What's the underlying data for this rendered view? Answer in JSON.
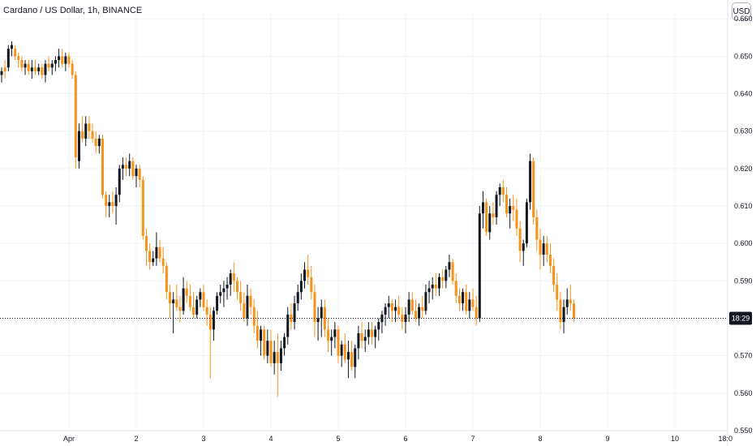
{
  "header": {
    "title": "Cardano / US Dollar, 1h, BINANCE",
    "currency_button": "USD"
  },
  "colors": {
    "up": "#131722",
    "down": "#f7931a",
    "grid": "#f0f3fa",
    "axis_text": "#131722",
    "price_line": "#131722"
  },
  "chart_data": {
    "type": "candlestick",
    "title": "Cardano / US Dollar, 1h, BINANCE",
    "y_axis": {
      "ticks": [
        0.55,
        0.56,
        0.57,
        0.58,
        0.59,
        0.6,
        0.61,
        0.62,
        0.63,
        0.64,
        0.65,
        0.66
      ],
      "ylim": [
        0.55,
        0.662
      ],
      "position": "right"
    },
    "x_axis": {
      "tick_labels": [
        "Apr",
        "2",
        "3",
        "4",
        "5",
        "6",
        "7",
        "8",
        "9",
        "10",
        "18:0"
      ],
      "tick_index": [
        20,
        40,
        60,
        80,
        100,
        120,
        140,
        160,
        180,
        200,
        215
      ]
    },
    "current_price": 0.58,
    "current_price_label": "18:29",
    "candles": [
      [
        0.645,
        0.647,
        0.643,
        0.646
      ],
      [
        0.647,
        0.649,
        0.644,
        0.646
      ],
      [
        0.647,
        0.653,
        0.646,
        0.652
      ],
      [
        0.652,
        0.654,
        0.65,
        0.653
      ],
      [
        0.652,
        0.653,
        0.649,
        0.65
      ],
      [
        0.65,
        0.651,
        0.647,
        0.649
      ],
      [
        0.649,
        0.65,
        0.646,
        0.647
      ],
      [
        0.647,
        0.649,
        0.645,
        0.648
      ],
      [
        0.648,
        0.649,
        0.645,
        0.646
      ],
      [
        0.646,
        0.649,
        0.644,
        0.647
      ],
      [
        0.647,
        0.649,
        0.645,
        0.646
      ],
      [
        0.646,
        0.648,
        0.645,
        0.647
      ],
      [
        0.647,
        0.648,
        0.644,
        0.645
      ],
      [
        0.645,
        0.649,
        0.643,
        0.648
      ],
      [
        0.648,
        0.65,
        0.646,
        0.647
      ],
      [
        0.647,
        0.649,
        0.645,
        0.648
      ],
      [
        0.648,
        0.65,
        0.646,
        0.649
      ],
      [
        0.649,
        0.652,
        0.647,
        0.65
      ],
      [
        0.65,
        0.652,
        0.647,
        0.648
      ],
      [
        0.648,
        0.651,
        0.646,
        0.65
      ],
      [
        0.65,
        0.651,
        0.647,
        0.648
      ],
      [
        0.648,
        0.649,
        0.644,
        0.645
      ],
      [
        0.645,
        0.646,
        0.62,
        0.623
      ],
      [
        0.622,
        0.632,
        0.62,
        0.63
      ],
      [
        0.63,
        0.634,
        0.627,
        0.628
      ],
      [
        0.628,
        0.634,
        0.626,
        0.632
      ],
      [
        0.632,
        0.634,
        0.628,
        0.63
      ],
      [
        0.63,
        0.632,
        0.627,
        0.628
      ],
      [
        0.628,
        0.63,
        0.624,
        0.626
      ],
      [
        0.626,
        0.629,
        0.624,
        0.628
      ],
      [
        0.628,
        0.629,
        0.612,
        0.613
      ],
      [
        0.613,
        0.614,
        0.607,
        0.61
      ],
      [
        0.61,
        0.613,
        0.607,
        0.611
      ],
      [
        0.611,
        0.614,
        0.608,
        0.61
      ],
      [
        0.61,
        0.615,
        0.605,
        0.613
      ],
      [
        0.613,
        0.621,
        0.611,
        0.62
      ],
      [
        0.62,
        0.623,
        0.617,
        0.621
      ],
      [
        0.621,
        0.623,
        0.618,
        0.62
      ],
      [
        0.62,
        0.624,
        0.618,
        0.622
      ],
      [
        0.622,
        0.623,
        0.617,
        0.618
      ],
      [
        0.618,
        0.621,
        0.615,
        0.62
      ],
      [
        0.62,
        0.621,
        0.615,
        0.617
      ],
      [
        0.617,
        0.618,
        0.601,
        0.602
      ],
      [
        0.602,
        0.604,
        0.594,
        0.598
      ],
      [
        0.598,
        0.6,
        0.593,
        0.595
      ],
      [
        0.595,
        0.598,
        0.594,
        0.596
      ],
      [
        0.596,
        0.603,
        0.594,
        0.599
      ],
      [
        0.599,
        0.601,
        0.595,
        0.596
      ],
      [
        0.596,
        0.599,
        0.592,
        0.594
      ],
      [
        0.594,
        0.595,
        0.585,
        0.587
      ],
      [
        0.587,
        0.589,
        0.58,
        0.584
      ],
      [
        0.584,
        0.587,
        0.576,
        0.585
      ],
      [
        0.585,
        0.589,
        0.582,
        0.583
      ],
      [
        0.583,
        0.586,
        0.579,
        0.582
      ],
      [
        0.582,
        0.591,
        0.581,
        0.588
      ],
      [
        0.588,
        0.59,
        0.584,
        0.586
      ],
      [
        0.586,
        0.589,
        0.582,
        0.583
      ],
      [
        0.583,
        0.587,
        0.58,
        0.581
      ],
      [
        0.581,
        0.586,
        0.58,
        0.585
      ],
      [
        0.585,
        0.588,
        0.583,
        0.587
      ],
      [
        0.587,
        0.589,
        0.582,
        0.583
      ],
      [
        0.583,
        0.585,
        0.578,
        0.581
      ],
      [
        0.581,
        0.583,
        0.564,
        0.577
      ],
      [
        0.577,
        0.583,
        0.574,
        0.582
      ],
      [
        0.582,
        0.587,
        0.581,
        0.586
      ],
      [
        0.586,
        0.589,
        0.584,
        0.587
      ],
      [
        0.587,
        0.59,
        0.583,
        0.588
      ],
      [
        0.588,
        0.591,
        0.585,
        0.589
      ],
      [
        0.589,
        0.593,
        0.586,
        0.592
      ],
      [
        0.592,
        0.595,
        0.587,
        0.59
      ],
      [
        0.59,
        0.591,
        0.585,
        0.587
      ],
      [
        0.587,
        0.59,
        0.582,
        0.584
      ],
      [
        0.584,
        0.587,
        0.579,
        0.58
      ],
      [
        0.58,
        0.589,
        0.578,
        0.586
      ],
      [
        0.586,
        0.588,
        0.581,
        0.583
      ],
      [
        0.583,
        0.585,
        0.576,
        0.578
      ],
      [
        0.578,
        0.582,
        0.572,
        0.574
      ],
      [
        0.574,
        0.578,
        0.57,
        0.577
      ],
      [
        0.577,
        0.578,
        0.569,
        0.57
      ],
      [
        0.57,
        0.577,
        0.568,
        0.574
      ],
      [
        0.574,
        0.577,
        0.567,
        0.568
      ],
      [
        0.568,
        0.574,
        0.565,
        0.571
      ],
      [
        0.571,
        0.576,
        0.559,
        0.568
      ],
      [
        0.568,
        0.574,
        0.566,
        0.572
      ],
      [
        0.572,
        0.576,
        0.57,
        0.575
      ],
      [
        0.575,
        0.583,
        0.573,
        0.581
      ],
      [
        0.581,
        0.584,
        0.577,
        0.579
      ],
      [
        0.579,
        0.586,
        0.577,
        0.584
      ],
      [
        0.584,
        0.589,
        0.582,
        0.587
      ],
      [
        0.587,
        0.592,
        0.585,
        0.59
      ],
      [
        0.59,
        0.595,
        0.588,
        0.593
      ],
      [
        0.593,
        0.597,
        0.589,
        0.591
      ],
      [
        0.591,
        0.594,
        0.585,
        0.587
      ],
      [
        0.587,
        0.589,
        0.575,
        0.579
      ],
      [
        0.579,
        0.583,
        0.574,
        0.58
      ],
      [
        0.58,
        0.585,
        0.575,
        0.583
      ],
      [
        0.583,
        0.585,
        0.575,
        0.577
      ],
      [
        0.577,
        0.58,
        0.571,
        0.574
      ],
      [
        0.574,
        0.577,
        0.57,
        0.575
      ],
      [
        0.575,
        0.579,
        0.572,
        0.577
      ],
      [
        0.577,
        0.578,
        0.568,
        0.57
      ],
      [
        0.57,
        0.574,
        0.567,
        0.573
      ],
      [
        0.573,
        0.576,
        0.568,
        0.569
      ],
      [
        0.569,
        0.574,
        0.564,
        0.571
      ],
      [
        0.571,
        0.574,
        0.566,
        0.567
      ],
      [
        0.567,
        0.573,
        0.564,
        0.572
      ],
      [
        0.572,
        0.578,
        0.569,
        0.576
      ],
      [
        0.576,
        0.579,
        0.572,
        0.574
      ],
      [
        0.574,
        0.577,
        0.571,
        0.575
      ],
      [
        0.575,
        0.579,
        0.573,
        0.577
      ],
      [
        0.577,
        0.579,
        0.573,
        0.575
      ],
      [
        0.575,
        0.578,
        0.572,
        0.577
      ],
      [
        0.577,
        0.58,
        0.574,
        0.579
      ],
      [
        0.579,
        0.582,
        0.576,
        0.581
      ],
      [
        0.581,
        0.584,
        0.578,
        0.583
      ],
      [
        0.583,
        0.586,
        0.58,
        0.584
      ],
      [
        0.584,
        0.585,
        0.579,
        0.582
      ],
      [
        0.582,
        0.585,
        0.579,
        0.583
      ],
      [
        0.583,
        0.586,
        0.58,
        0.581
      ],
      [
        0.581,
        0.583,
        0.577,
        0.579
      ],
      [
        0.579,
        0.583,
        0.576,
        0.581
      ],
      [
        0.581,
        0.587,
        0.579,
        0.585
      ],
      [
        0.585,
        0.587,
        0.581,
        0.582
      ],
      [
        0.582,
        0.585,
        0.579,
        0.58
      ],
      [
        0.58,
        0.584,
        0.578,
        0.583
      ],
      [
        0.583,
        0.586,
        0.58,
        0.582
      ],
      [
        0.582,
        0.589,
        0.581,
        0.587
      ],
      [
        0.587,
        0.59,
        0.584,
        0.588
      ],
      [
        0.588,
        0.591,
        0.585,
        0.589
      ],
      [
        0.589,
        0.592,
        0.586,
        0.588
      ],
      [
        0.588,
        0.592,
        0.586,
        0.591
      ],
      [
        0.591,
        0.593,
        0.588,
        0.59
      ],
      [
        0.59,
        0.594,
        0.588,
        0.593
      ],
      [
        0.593,
        0.597,
        0.591,
        0.595
      ],
      [
        0.595,
        0.596,
        0.589,
        0.59
      ],
      [
        0.59,
        0.592,
        0.584,
        0.586
      ],
      [
        0.586,
        0.588,
        0.582,
        0.584
      ],
      [
        0.584,
        0.588,
        0.582,
        0.587
      ],
      [
        0.587,
        0.589,
        0.581,
        0.582
      ],
      [
        0.582,
        0.587,
        0.58,
        0.585
      ],
      [
        0.585,
        0.588,
        0.582,
        0.583
      ],
      [
        0.583,
        0.586,
        0.578,
        0.58
      ],
      [
        0.58,
        0.61,
        0.579,
        0.608
      ],
      [
        0.608,
        0.614,
        0.604,
        0.611
      ],
      [
        0.611,
        0.612,
        0.602,
        0.603
      ],
      [
        0.603,
        0.61,
        0.601,
        0.608
      ],
      [
        0.608,
        0.611,
        0.605,
        0.607
      ],
      [
        0.607,
        0.614,
        0.605,
        0.613
      ],
      [
        0.613,
        0.616,
        0.61,
        0.615
      ],
      [
        0.615,
        0.617,
        0.611,
        0.613
      ],
      [
        0.613,
        0.615,
        0.607,
        0.608
      ],
      [
        0.608,
        0.612,
        0.604,
        0.61
      ],
      [
        0.61,
        0.613,
        0.606,
        0.609
      ],
      [
        0.609,
        0.612,
        0.602,
        0.604
      ],
      [
        0.604,
        0.606,
        0.595,
        0.598
      ],
      [
        0.598,
        0.601,
        0.594,
        0.6
      ],
      [
        0.6,
        0.612,
        0.599,
        0.611
      ],
      [
        0.611,
        0.624,
        0.609,
        0.622
      ],
      [
        0.622,
        0.623,
        0.605,
        0.607
      ],
      [
        0.607,
        0.609,
        0.598,
        0.601
      ],
      [
        0.601,
        0.604,
        0.593,
        0.597
      ],
      [
        0.597,
        0.602,
        0.594,
        0.6
      ],
      [
        0.6,
        0.602,
        0.595,
        0.597
      ],
      [
        0.597,
        0.6,
        0.592,
        0.594
      ],
      [
        0.594,
        0.596,
        0.587,
        0.589
      ],
      [
        0.589,
        0.592,
        0.582,
        0.585
      ],
      [
        0.585,
        0.587,
        0.577,
        0.579
      ],
      [
        0.579,
        0.585,
        0.576,
        0.583
      ],
      [
        0.583,
        0.588,
        0.581,
        0.585
      ],
      [
        0.585,
        0.589,
        0.582,
        0.584
      ],
      [
        0.584,
        0.585,
        0.579,
        0.58
      ]
    ]
  }
}
